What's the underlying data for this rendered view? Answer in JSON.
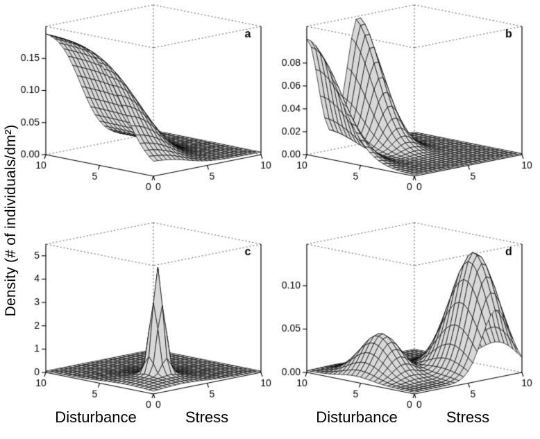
{
  "figure": {
    "background": "#ffffff",
    "ylabel": "Density (# of individuals/dm²)",
    "xlabel_left": "Disturbance",
    "xlabel_right": "Stress",
    "surface_fill": "#d8d8d8",
    "mesh_line_color": "#000000",
    "box_line_color": "#000000",
    "hidden_line_color": "#555555"
  },
  "chart_data": {
    "type": "surface3d",
    "layout": "2x2 grid of 3D mesh surface plots",
    "grid_intervals": 24,
    "x_axis": {
      "label": "Disturbance",
      "range": [
        0,
        10
      ],
      "ticks": [
        {
          "value": 10,
          "label": "10"
        },
        {
          "value": 5,
          "label": "5"
        },
        {
          "value": 0,
          "label": "0"
        }
      ]
    },
    "y_axis": {
      "label": "Stress",
      "range": [
        0,
        10
      ],
      "ticks": [
        {
          "value": 0,
          "label": "0"
        },
        {
          "value": 5,
          "label": "5"
        },
        {
          "value": 10,
          "label": "10"
        }
      ]
    },
    "z_axis": {
      "label": "Density (# of individuals/dm²)"
    },
    "panels": [
      {
        "letter": "a",
        "z_max": 0.2,
        "z_ticks": [
          {
            "value": 0.0,
            "label": "0.00"
          },
          {
            "value": 0.05,
            "label": "0.05"
          },
          {
            "value": 0.1,
            "label": "0.10"
          },
          {
            "value": 0.15,
            "label": "0.15"
          }
        ],
        "surface_terms": [
          {
            "type": "sigmoid_product",
            "amp": 0.195,
            "d_mid": 2.8,
            "d_scale": 1.3,
            "s_mid": 3.2,
            "s_scale": 1.1
          },
          {
            "type": "const",
            "amp": 0.004
          }
        ]
      },
      {
        "letter": "b",
        "z_max": 0.112,
        "z_ticks": [
          {
            "value": 0.0,
            "label": "0.00"
          },
          {
            "value": 0.02,
            "label": "0.02"
          },
          {
            "value": 0.04,
            "label": "0.04"
          },
          {
            "value": 0.06,
            "label": "0.06"
          },
          {
            "value": 0.08,
            "label": "0.08"
          }
        ],
        "surface_terms": [
          {
            "type": "gauss2d",
            "amp": 0.1,
            "d0": 10.0,
            "sd": 4.0,
            "s0": 0.0,
            "ss": 1.45
          },
          {
            "type": "gauss2d",
            "amp": 0.112,
            "d0": 10.3,
            "sd": 3.1,
            "s0": 4.8,
            "ss": 1.5
          },
          {
            "type": "const",
            "amp": 0.001
          }
        ]
      },
      {
        "letter": "c",
        "z_max": 5.5,
        "z_ticks": [
          {
            "value": 0,
            "label": "0"
          },
          {
            "value": 1,
            "label": "1"
          },
          {
            "value": 2,
            "label": "2"
          },
          {
            "value": 3,
            "label": "3"
          },
          {
            "value": 4,
            "label": "4"
          },
          {
            "value": 5,
            "label": "5"
          }
        ],
        "surface_terms": [
          {
            "type": "const",
            "amp": 0.06
          },
          {
            "type": "gauss2d",
            "amp": 0.28,
            "d0": 2.5,
            "sd": 3.0,
            "s0": 2.8,
            "ss": 3.0
          },
          {
            "type": "gauss2d",
            "amp": 4.55,
            "d0": 2.9,
            "sd": 0.6,
            "s0": 3.3,
            "ss": 0.6
          }
        ]
      },
      {
        "letter": "d",
        "z_max": 0.148,
        "z_ticks": [
          {
            "value": 0.0,
            "label": "0.00"
          },
          {
            "value": 0.05,
            "label": "0.05"
          },
          {
            "value": 0.1,
            "label": "0.10"
          }
        ],
        "surface_terms": [
          {
            "type": "gauss2d",
            "amp": 0.138,
            "d0": 2.0,
            "sd": 2.6,
            "s0": 7.6,
            "ss": 1.9
          },
          {
            "type": "gauss2d",
            "amp": 0.048,
            "d0": 5.5,
            "sd": 2.2,
            "s0": 2.4,
            "ss": 1.6
          },
          {
            "type": "const",
            "amp": 0.002
          }
        ]
      }
    ]
  }
}
